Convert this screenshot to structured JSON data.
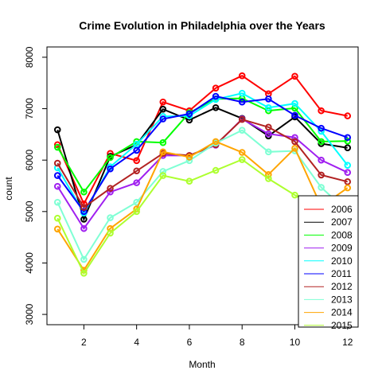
{
  "chart_data": {
    "type": "line",
    "title": "Crime Evolution in Philadelphia over the Years",
    "xlabel": "Month",
    "ylabel": "count",
    "xlim": [
      0.6,
      12.4
    ],
    "ylim": [
      2800,
      8200
    ],
    "x_ticks": [
      2,
      4,
      6,
      8,
      10,
      12
    ],
    "y_ticks": [
      3000,
      4000,
      5000,
      6000,
      7000,
      8000
    ],
    "grid": false,
    "legend_position": "bottom-right",
    "x": [
      1,
      2,
      3,
      4,
      5,
      6,
      7,
      8,
      9,
      10,
      11,
      12
    ],
    "series": [
      {
        "name": "2006",
        "color": "#FF0000",
        "values": [
          6300,
          5150,
          6130,
          5990,
          7130,
          6960,
          7400,
          7640,
          7290,
          7630,
          6960,
          6860
        ]
      },
      {
        "name": "2007",
        "color": "#000000",
        "values": [
          6590,
          4850,
          6070,
          6300,
          6990,
          6780,
          7020,
          6810,
          6470,
          6840,
          6320,
          6240
        ]
      },
      {
        "name": "2008",
        "color": "#00FF00",
        "values": [
          6250,
          5380,
          6050,
          6360,
          6340,
          6920,
          7190,
          7200,
          6960,
          7010,
          6360,
          6370
        ]
      },
      {
        "name": "2009",
        "color": "#A020F0",
        "values": [
          5490,
          4670,
          5380,
          5560,
          6090,
          6090,
          6290,
          6800,
          6510,
          6440,
          6000,
          5760
        ]
      },
      {
        "name": "2010",
        "color": "#00FFFF",
        "values": [
          5850,
          4970,
          5870,
          6310,
          6850,
          6860,
          7180,
          7300,
          7020,
          7100,
          6560,
          5900
        ]
      },
      {
        "name": "2011",
        "color": "#0000FF",
        "values": [
          5700,
          5000,
          5830,
          6190,
          6800,
          6900,
          7240,
          7130,
          7190,
          6870,
          6620,
          6440
        ]
      },
      {
        "name": "2012",
        "color": "#B22222",
        "values": [
          5940,
          5080,
          5450,
          5790,
          6130,
          6090,
          6300,
          6790,
          6640,
          6360,
          5710,
          5580
        ]
      },
      {
        "name": "2013",
        "color": "#7FFFD4",
        "values": [
          5180,
          4070,
          4880,
          5180,
          5780,
          5990,
          6330,
          6580,
          6160,
          6180,
          5470,
          5000
        ]
      },
      {
        "name": "2014",
        "color": "#FFA500",
        "values": [
          4660,
          3860,
          4670,
          5050,
          6160,
          6060,
          6360,
          6150,
          5720,
          6230,
          5100,
          5460
        ]
      },
      {
        "name": "2015",
        "color": "#ADFF2F",
        "values": [
          4870,
          3800,
          4580,
          5000,
          5700,
          5590,
          5800,
          6010,
          5640,
          5320,
          5010,
          5000
        ]
      }
    ]
  }
}
